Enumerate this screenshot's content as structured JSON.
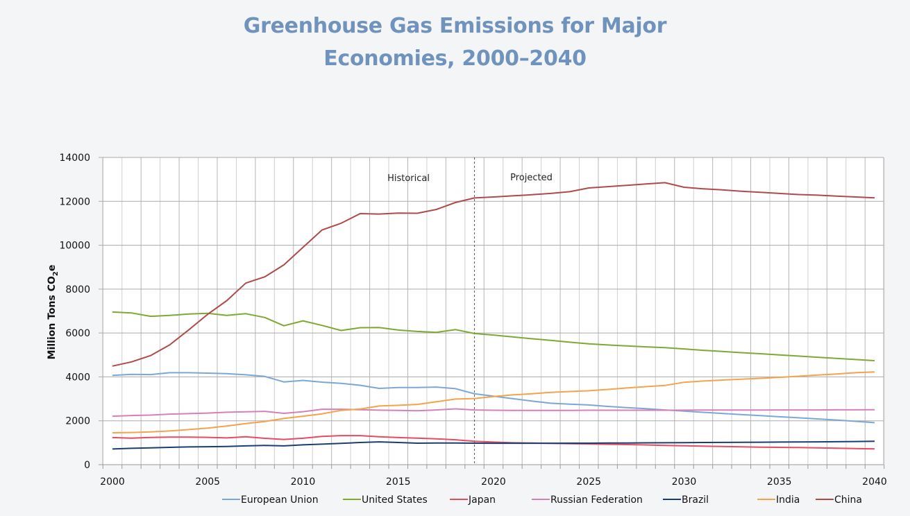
{
  "chart_data": {
    "type": "line",
    "title_lines": [
      "Greenhouse Gas Emissions for Major",
      "Economies, 2000–2040"
    ],
    "xlabel": "",
    "ylabel": "Million Tons CO",
    "ylabel_subscript": "2",
    "ylabel_suffix": "e",
    "xlim": [
      2000,
      2040
    ],
    "ylim": [
      0,
      14000
    ],
    "x_ticks": [
      2000,
      2005,
      2010,
      2015,
      2020,
      2025,
      2030,
      2035,
      2040
    ],
    "y_ticks": [
      0,
      2000,
      4000,
      6000,
      8000,
      10000,
      12000,
      14000
    ],
    "grid": true,
    "legend_position": "bottom",
    "annotations": [
      {
        "text": "Historical"
      },
      {
        "text": "Projected"
      }
    ],
    "divider_year": 2019,
    "x": [
      2000,
      2001,
      2002,
      2003,
      2004,
      2005,
      2006,
      2007,
      2008,
      2009,
      2010,
      2011,
      2012,
      2013,
      2014,
      2015,
      2016,
      2017,
      2018,
      2019,
      2020,
      2021,
      2022,
      2023,
      2024,
      2025,
      2026,
      2027,
      2028,
      2029,
      2030,
      2031,
      2032,
      2033,
      2034,
      2035,
      2036,
      2037,
      2038,
      2039,
      2040
    ],
    "series": [
      {
        "name": "European Union",
        "color": "#7ba7d7",
        "values": [
          4070,
          4115,
          4105,
          4190,
          4190,
          4170,
          4150,
          4095,
          4020,
          3770,
          3840,
          3760,
          3705,
          3620,
          3475,
          3515,
          3515,
          3535,
          3465,
          3230,
          3120,
          3010,
          2900,
          2800,
          2760,
          2720,
          2655,
          2600,
          2550,
          2495,
          2440,
          2385,
          2335,
          2285,
          2235,
          2185,
          2135,
          2085,
          2035,
          1975,
          1915
        ]
      },
      {
        "name": "United States",
        "color": "#7fa832",
        "values": [
          6955,
          6915,
          6760,
          6800,
          6865,
          6900,
          6805,
          6880,
          6705,
          6330,
          6555,
          6345,
          6115,
          6240,
          6250,
          6135,
          6070,
          6030,
          6155,
          5975,
          5905,
          5820,
          5740,
          5665,
          5580,
          5505,
          5455,
          5410,
          5370,
          5335,
          5275,
          5210,
          5160,
          5105,
          5055,
          5000,
          4950,
          4895,
          4840,
          4790,
          4740
        ]
      },
      {
        "name": "Japan",
        "color": "#e84a5f",
        "values": [
          1235,
          1210,
          1240,
          1255,
          1255,
          1245,
          1220,
          1275,
          1200,
          1150,
          1205,
          1285,
          1325,
          1325,
          1275,
          1235,
          1210,
          1180,
          1135,
          1065,
          1030,
          1000,
          985,
          970,
          955,
          945,
          930,
          915,
          900,
          880,
          860,
          845,
          830,
          815,
          800,
          790,
          780,
          765,
          750,
          735,
          720
        ]
      },
      {
        "name": "Russian Federation",
        "color": "#d97fb8",
        "values": [
          2210,
          2240,
          2260,
          2305,
          2325,
          2350,
          2390,
          2410,
          2430,
          2340,
          2415,
          2525,
          2525,
          2505,
          2485,
          2475,
          2455,
          2495,
          2545,
          2495,
          2480,
          2475,
          2475,
          2475,
          2475,
          2480,
          2480,
          2480,
          2480,
          2480,
          2485,
          2490,
          2490,
          2490,
          2490,
          2495,
          2495,
          2495,
          2500,
          2500,
          2505
        ]
      },
      {
        "name": "Brazil",
        "color": "#1a3f6e",
        "values": [
          715,
          745,
          765,
          790,
          810,
          820,
          830,
          855,
          875,
          855,
          905,
          935,
          970,
          1010,
          1040,
          1010,
          980,
          990,
          990,
          980,
          975,
          975,
          975,
          975,
          980,
          980,
          985,
          990,
          995,
          1000,
          1005,
          1010,
          1015,
          1020,
          1025,
          1030,
          1035,
          1040,
          1045,
          1055,
          1065
        ]
      },
      {
        "name": "India",
        "color": "#f5a24a",
        "values": [
          1455,
          1465,
          1495,
          1535,
          1600,
          1665,
          1760,
          1875,
          1970,
          2105,
          2210,
          2315,
          2475,
          2535,
          2675,
          2705,
          2745,
          2865,
          2990,
          3015,
          3105,
          3180,
          3230,
          3295,
          3335,
          3370,
          3430,
          3495,
          3555,
          3610,
          3755,
          3810,
          3855,
          3895,
          3935,
          3980,
          4030,
          4085,
          4135,
          4190,
          4230
        ]
      },
      {
        "name": "China",
        "color": "#b04a4a",
        "values": [
          4495,
          4685,
          4970,
          5455,
          6140,
          6855,
          7475,
          8275,
          8560,
          9105,
          9905,
          10695,
          11000,
          11440,
          11420,
          11465,
          11455,
          11630,
          11945,
          12155,
          12200,
          12250,
          12300,
          12360,
          12440,
          12610,
          12670,
          12730,
          12790,
          12850,
          12640,
          12570,
          12520,
          12460,
          12410,
          12360,
          12310,
          12280,
          12240,
          12200,
          12160
        ]
      }
    ]
  }
}
